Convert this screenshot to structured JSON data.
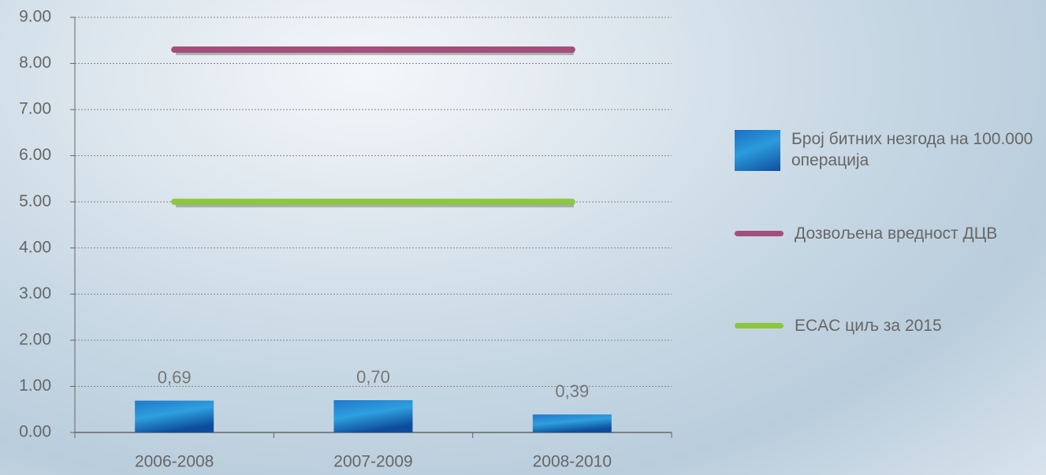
{
  "chart_data": {
    "type": "bar",
    "categories": [
      "2006-2008",
      "2007-2009",
      "2008-2010"
    ],
    "series": [
      {
        "name": "Број битних незгода на 100.000 операција",
        "type": "bar",
        "color": "#1f78cc",
        "values": [
          0.69,
          0.7,
          0.39
        ],
        "value_labels": [
          "0,69",
          "0,70",
          "0,39"
        ]
      },
      {
        "name": "Дозвољена вредност ДЦВ",
        "type": "line",
        "color": "#a64d79",
        "values": [
          8.3,
          8.3,
          8.3
        ]
      },
      {
        "name": "ECAC циљ за 2015",
        "type": "line",
        "color": "#8dc63f",
        "values": [
          5.0,
          5.0,
          5.0
        ]
      }
    ],
    "ylim": [
      0,
      9
    ],
    "yticks": [
      {
        "value": 0,
        "label": "0.00"
      },
      {
        "value": 1,
        "label": "1.00"
      },
      {
        "value": 2,
        "label": "2.00"
      },
      {
        "value": 3,
        "label": "3.00"
      },
      {
        "value": 4,
        "label": "4.00"
      },
      {
        "value": 5,
        "label": "5.00"
      },
      {
        "value": 6,
        "label": "6.00"
      },
      {
        "value": 7,
        "label": "7.00"
      },
      {
        "value": 8,
        "label": "8.00"
      },
      {
        "value": 9,
        "label": "9.00"
      }
    ],
    "grid": true
  }
}
